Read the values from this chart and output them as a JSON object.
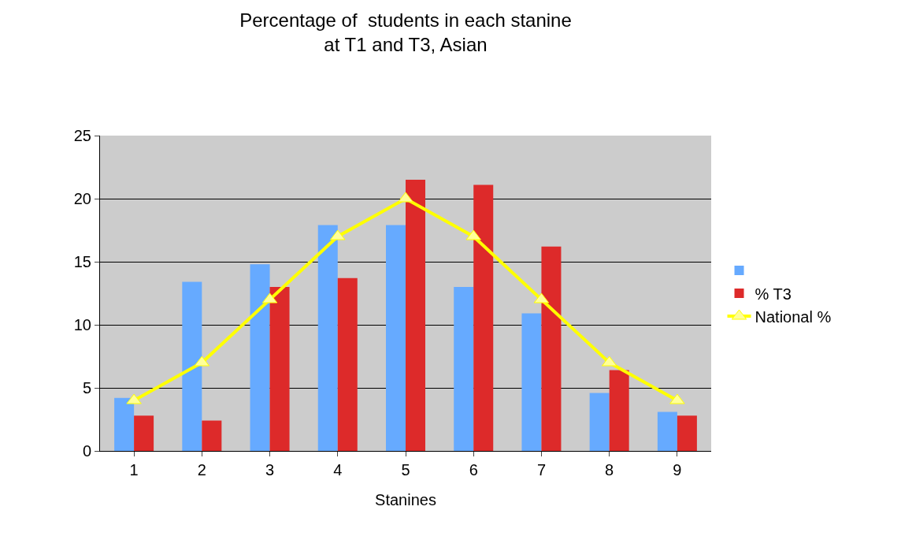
{
  "chart_data": {
    "type": "bar",
    "title": "Percentage of  students in each stanine\nat T1 and T3, Asian",
    "xlabel": "Stanines",
    "categories": [
      "1",
      "2",
      "3",
      "4",
      "5",
      "6",
      "7",
      "8",
      "9"
    ],
    "series": [
      {
        "color": "#66aaff",
        "values": [
          4.2,
          13.4,
          14.8,
          17.9,
          17.9,
          13,
          10.9,
          4.6,
          3.1
        ]
      },
      {
        "name": "% T3",
        "color": "#dd2a2a",
        "values": [
          2.8,
          2.4,
          13,
          13.7,
          21.5,
          21.1,
          16.2,
          6.4,
          2.8
        ]
      },
      {
        "name": "National %",
        "type": "line",
        "color": "#ffff00",
        "marker": "triangle",
        "values": [
          4,
          7,
          12,
          17,
          20,
          17,
          12,
          7,
          4
        ]
      }
    ],
    "ylim": [
      0,
      25
    ],
    "yticks": [
      0,
      5,
      10,
      15,
      20,
      25
    ],
    "grid": "y",
    "legend": "right"
  }
}
